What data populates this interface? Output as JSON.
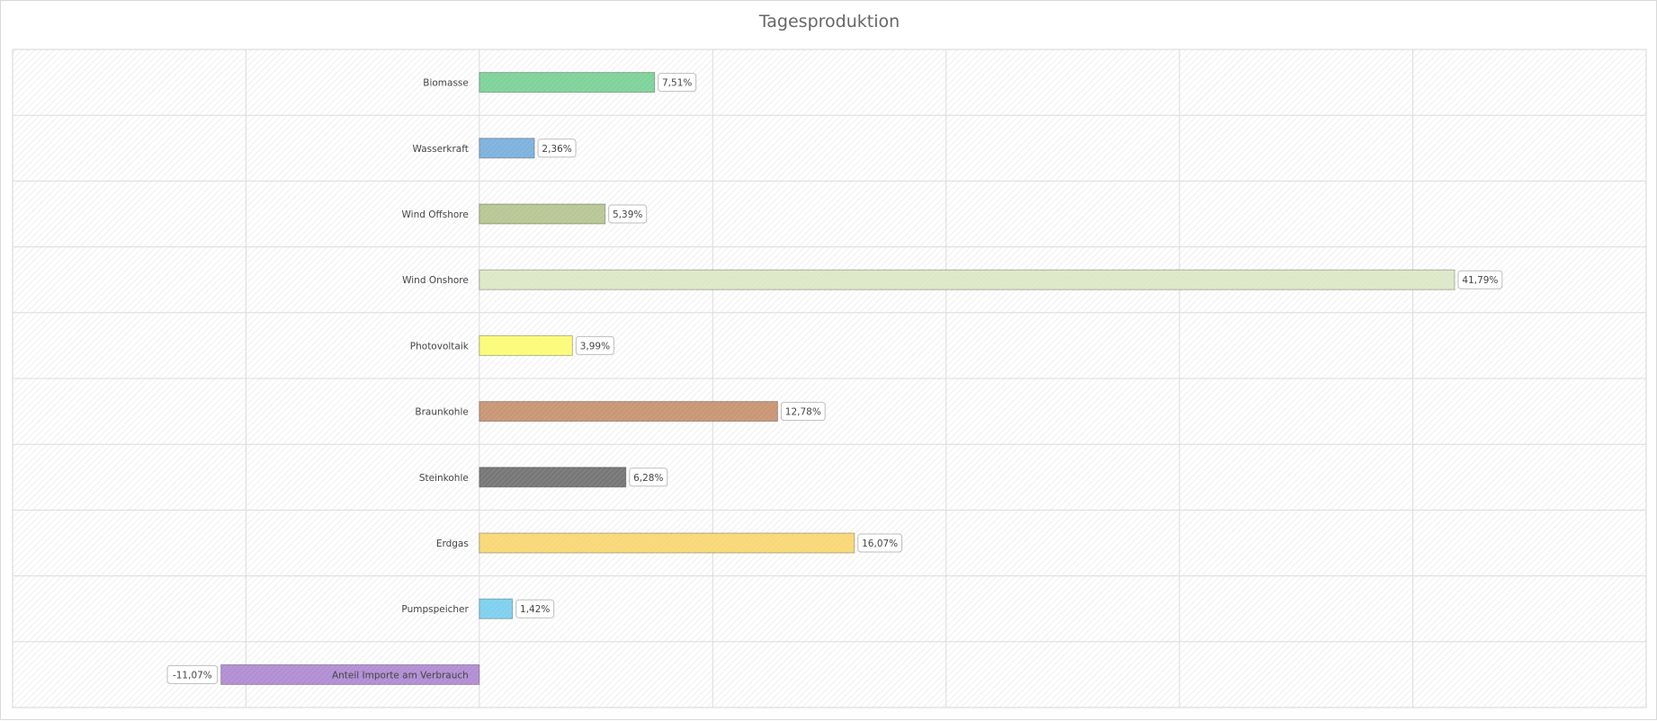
{
  "chart_data": {
    "type": "bar",
    "orientation": "horizontal",
    "title": "Tagesproduktion",
    "categories": [
      "Biomasse",
      "Wasserkraft",
      "Wind Offshore",
      "Wind Onshore",
      "Photovoltaik",
      "Braunkohle",
      "Steinkohle",
      "Erdgas",
      "Pumpspeicher",
      "Anteil Importe am Verbrauch"
    ],
    "values": [
      7.51,
      2.36,
      5.39,
      41.79,
      3.99,
      12.78,
      6.28,
      16.07,
      1.42,
      -11.07
    ],
    "value_labels": [
      "7,51%",
      "2,36%",
      "5,39%",
      "41,79%",
      "3,99%",
      "12,78%",
      "6,28%",
      "16,07%",
      "1,42%",
      "-11,07%"
    ],
    "colors": [
      "#7fd39a",
      "#7fb2dd",
      "#b8c795",
      "#dde8c8",
      "#fbfb7a",
      "#c99676",
      "#777777",
      "#f8d878",
      "#80d0ef",
      "#b28ed4"
    ],
    "xlim": [
      -20,
      50
    ],
    "grid": true,
    "legend": false,
    "xlabel": "",
    "ylabel": ""
  }
}
